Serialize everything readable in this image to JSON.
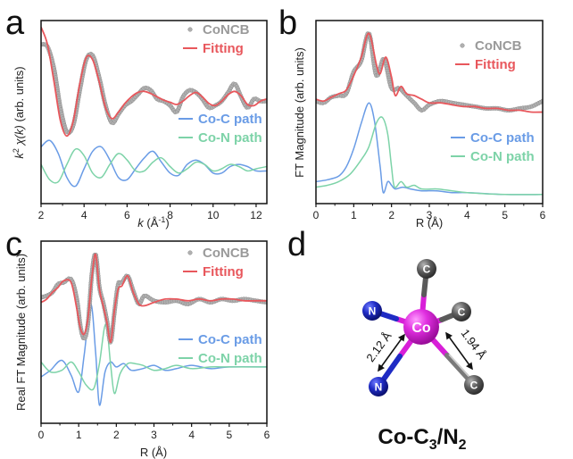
{
  "colors": {
    "data": "#9a9a9a",
    "fitting": "#e8575c",
    "co_c": "#6a9ce6",
    "co_n": "#7dd3a8",
    "cobalt": "#d81fd8",
    "nitrogen": "#1f2bc4",
    "carbon": "#5a5a5a"
  },
  "chart_data": [
    {
      "id": "a",
      "panel_label": "a",
      "type": "line",
      "xlabel_italic": "k",
      "xlabel_rest": " (Å",
      "xlabel_sup": "-1",
      "xlabel_end": ")",
      "ylabel_k": "k",
      "ylabel_sup": "2",
      "ylabel_chi": " χ(k)",
      "ylabel_rest": " (arb. units)",
      "xlim": [
        2,
        12.5
      ],
      "ylim": [
        -4.2,
        4.2
      ],
      "xticks": [
        "2",
        "4",
        "6",
        "8",
        "10",
        "12"
      ],
      "xtick_values": [
        2,
        4,
        6,
        8,
        10,
        12
      ],
      "grid": false,
      "legend": [
        {
          "name": "CoNCB",
          "style": "dots",
          "placement": "top-right"
        },
        {
          "name": "Fitting",
          "style": "line",
          "placement": "top-right"
        },
        {
          "name": "Co-C path",
          "style": "line",
          "placement": "middle-right"
        },
        {
          "name": "Co-N path",
          "style": "line",
          "placement": "middle-right"
        }
      ],
      "series": [
        {
          "name": "CoNCB",
          "kind": "dots",
          "x": [
            2.0,
            2.3,
            2.6,
            2.9,
            3.2,
            3.5,
            3.8,
            4.1,
            4.4,
            4.7,
            5.0,
            5.3,
            5.6,
            5.9,
            6.2,
            6.5,
            6.8,
            7.1,
            7.4,
            7.7,
            8.0,
            8.3,
            8.6,
            8.9,
            9.2,
            9.5,
            9.8,
            10.1,
            10.4,
            10.7,
            11.0,
            11.3,
            11.6,
            11.9,
            12.2,
            12.5
          ],
          "y": [
            3.1,
            3.0,
            2.0,
            0.2,
            -0.9,
            -0.6,
            1.0,
            2.4,
            2.6,
            1.6,
            0.3,
            -0.5,
            -0.1,
            0.3,
            0.5,
            0.8,
            1.1,
            1.0,
            0.6,
            0.5,
            0.3,
            0.0,
            0.7,
            1.0,
            0.9,
            0.6,
            0.2,
            0.3,
            0.5,
            0.9,
            1.3,
            0.7,
            0.2,
            0.6,
            0.5,
            0.5
          ]
        },
        {
          "name": "Fitting",
          "kind": "line",
          "x": [
            2.0,
            2.3,
            2.6,
            2.9,
            3.2,
            3.5,
            3.8,
            4.1,
            4.4,
            4.7,
            5.0,
            5.3,
            5.6,
            5.9,
            6.2,
            6.5,
            6.8,
            7.1,
            7.4,
            7.7,
            8.0,
            8.3,
            8.6,
            8.9,
            9.2,
            9.5,
            9.8,
            10.1,
            10.4,
            10.7,
            11.0,
            11.3,
            11.6,
            11.9,
            12.2,
            12.5
          ],
          "y": [
            3.9,
            3.1,
            1.4,
            -0.4,
            -1.1,
            -0.4,
            1.3,
            2.5,
            2.4,
            1.4,
            0.2,
            -0.3,
            0.0,
            0.4,
            0.7,
            0.9,
            0.95,
            0.85,
            0.7,
            0.55,
            0.45,
            0.35,
            0.5,
            0.75,
            0.9,
            0.7,
            0.4,
            0.3,
            0.5,
            0.8,
            0.95,
            0.75,
            0.35,
            0.3,
            0.5,
            0.6
          ]
        },
        {
          "name": "Co-C path",
          "kind": "line",
          "x": [
            2.0,
            2.4,
            2.8,
            3.2,
            3.6,
            4.0,
            4.4,
            4.8,
            5.2,
            5.6,
            6.0,
            6.4,
            6.8,
            7.2,
            7.6,
            8.0,
            8.4,
            8.8,
            9.2,
            9.6,
            10.0,
            10.4,
            10.8,
            11.2,
            11.6,
            12.0,
            12.5
          ],
          "y": [
            -1.6,
            -1.3,
            -1.9,
            -3.0,
            -3.4,
            -2.6,
            -1.8,
            -1.6,
            -2.2,
            -3.0,
            -3.1,
            -2.6,
            -2.1,
            -1.8,
            -2.3,
            -2.8,
            -2.9,
            -2.4,
            -2.2,
            -2.4,
            -2.8,
            -2.8,
            -2.5,
            -2.4,
            -2.5,
            -2.7,
            -2.7
          ]
        },
        {
          "name": "Co-N path",
          "kind": "line",
          "x": [
            2.0,
            2.4,
            2.8,
            3.2,
            3.6,
            4.0,
            4.4,
            4.8,
            5.2,
            5.6,
            6.0,
            6.4,
            6.8,
            7.2,
            7.6,
            8.0,
            8.4,
            8.8,
            9.2,
            9.6,
            10.0,
            10.4,
            10.8,
            11.2,
            11.6,
            12.0,
            12.5
          ],
          "y": [
            -2.4,
            -3.1,
            -3.2,
            -2.4,
            -1.7,
            -2.0,
            -2.8,
            -3.0,
            -2.4,
            -1.9,
            -2.2,
            -2.7,
            -2.7,
            -2.3,
            -2.1,
            -2.5,
            -2.8,
            -2.6,
            -2.3,
            -2.4,
            -2.7,
            -2.6,
            -2.4,
            -2.5,
            -2.7,
            -2.6,
            -2.5
          ]
        }
      ]
    },
    {
      "id": "b",
      "panel_label": "b",
      "type": "line",
      "xlabel": "R (Å)",
      "ylabel": "FT Magnitude (arb. units)",
      "xlim": [
        0,
        6
      ],
      "ylim": [
        0,
        10
      ],
      "xticks": [
        "0",
        "1",
        "2",
        "3",
        "4",
        "5",
        "6"
      ],
      "xtick_values": [
        0,
        1,
        2,
        3,
        4,
        5,
        6
      ],
      "grid": false,
      "legend": [
        {
          "name": "CoNCB",
          "style": "dots",
          "placement": "top-right"
        },
        {
          "name": "Fitting",
          "style": "line",
          "placement": "top-right"
        },
        {
          "name": "Co-C path",
          "style": "line",
          "placement": "middle-right"
        },
        {
          "name": "Co-N path",
          "style": "line",
          "placement": "middle-right"
        }
      ],
      "series": [
        {
          "name": "CoNCB",
          "kind": "dots",
          "x": [
            0.0,
            0.2,
            0.4,
            0.6,
            0.8,
            1.0,
            1.2,
            1.4,
            1.6,
            1.8,
            2.0,
            2.2,
            2.4,
            2.6,
            2.8,
            3.0,
            3.3,
            3.6,
            3.9,
            4.2,
            4.5,
            4.8,
            5.1,
            5.4,
            5.7,
            6.0
          ],
          "y": [
            5.6,
            5.5,
            5.8,
            5.9,
            6.0,
            7.2,
            7.8,
            9.3,
            7.0,
            7.9,
            6.3,
            6.3,
            5.9,
            5.5,
            5.1,
            5.4,
            5.6,
            5.5,
            5.4,
            5.3,
            5.2,
            5.2,
            5.1,
            5.2,
            5.3,
            5.6
          ]
        },
        {
          "name": "Fitting",
          "kind": "line",
          "x": [
            0.0,
            0.2,
            0.4,
            0.6,
            0.8,
            1.0,
            1.2,
            1.4,
            1.6,
            1.7,
            1.85,
            2.0,
            2.1,
            2.25,
            2.4,
            2.6,
            2.8,
            3.0,
            3.3,
            3.6,
            3.9,
            4.2,
            4.5,
            4.8,
            5.1,
            5.4,
            5.7,
            6.0
          ],
          "y": [
            5.7,
            5.6,
            5.8,
            6.0,
            6.2,
            7.0,
            8.0,
            9.3,
            7.6,
            7.1,
            8.0,
            6.9,
            5.9,
            6.4,
            6.0,
            5.9,
            5.7,
            5.5,
            5.5,
            5.4,
            5.3,
            5.3,
            5.2,
            5.2,
            5.1,
            5.1,
            5.0,
            5.0
          ]
        },
        {
          "name": "Co-C path",
          "kind": "line",
          "x": [
            0.0,
            0.3,
            0.6,
            0.8,
            1.0,
            1.2,
            1.4,
            1.55,
            1.7,
            1.78,
            1.9,
            2.0,
            2.1,
            2.3,
            2.5,
            2.8,
            3.2,
            3.6,
            4.0,
            5.0,
            6.0
          ],
          "y": [
            1.2,
            1.3,
            1.5,
            2.0,
            3.0,
            4.4,
            5.5,
            4.5,
            2.0,
            0.6,
            1.2,
            1.0,
            0.8,
            0.9,
            0.8,
            0.7,
            0.7,
            0.6,
            0.6,
            0.5,
            0.5
          ]
        },
        {
          "name": "Co-N path",
          "kind": "line",
          "x": [
            0.0,
            0.3,
            0.6,
            0.9,
            1.2,
            1.4,
            1.6,
            1.76,
            1.9,
            2.0,
            2.08,
            2.25,
            2.4,
            2.6,
            2.8,
            3.2,
            3.6,
            4.0,
            5.0,
            6.0
          ],
          "y": [
            0.9,
            1.0,
            1.2,
            1.6,
            2.4,
            3.1,
            4.4,
            4.7,
            3.8,
            2.0,
            0.9,
            1.2,
            0.9,
            1.0,
            0.8,
            0.8,
            0.7,
            0.6,
            0.5,
            0.5
          ]
        }
      ]
    },
    {
      "id": "c",
      "panel_label": "c",
      "type": "line",
      "xlabel": "R (Å)",
      "ylabel": "Real FT Magnitude (arb. units)",
      "xlim": [
        0,
        6
      ],
      "ylim": [
        -5.5,
        5.5
      ],
      "xticks": [
        "0",
        "1",
        "2",
        "3",
        "4",
        "5",
        "6"
      ],
      "xtick_values": [
        0,
        1,
        2,
        3,
        4,
        5,
        6
      ],
      "grid": false,
      "legend": [
        {
          "name": "CoNCB",
          "style": "dots",
          "placement": "top-right"
        },
        {
          "name": "Fitting",
          "style": "line",
          "placement": "top-right"
        },
        {
          "name": "Co-C path",
          "style": "line",
          "placement": "middle-right"
        },
        {
          "name": "Co-N path",
          "style": "line",
          "placement": "middle-right"
        }
      ],
      "series": [
        {
          "name": "CoNCB",
          "kind": "dots",
          "x": [
            0.0,
            0.15,
            0.3,
            0.45,
            0.6,
            0.8,
            0.95,
            1.05,
            1.15,
            1.25,
            1.35,
            1.45,
            1.55,
            1.65,
            1.75,
            1.85,
            1.95,
            2.05,
            2.15,
            2.3,
            2.45,
            2.6,
            2.75,
            3.0,
            3.3,
            3.6,
            3.9,
            4.2,
            4.5,
            4.8,
            5.1,
            5.4,
            5.7,
            6.0
          ],
          "y": [
            2.1,
            2.2,
            2.4,
            2.9,
            3.0,
            3.2,
            2.0,
            0.3,
            -0.4,
            0.6,
            3.5,
            4.7,
            2.7,
            1.8,
            0.7,
            -0.6,
            1.2,
            2.9,
            3.0,
            3.4,
            2.5,
            1.7,
            2.2,
            1.9,
            1.8,
            1.9,
            1.7,
            2.0,
            1.8,
            2.0,
            1.9,
            2.0,
            1.9,
            1.8
          ]
        },
        {
          "name": "Fitting",
          "kind": "line",
          "x": [
            0.0,
            0.15,
            0.3,
            0.45,
            0.6,
            0.8,
            0.95,
            1.05,
            1.15,
            1.25,
            1.35,
            1.45,
            1.55,
            1.65,
            1.75,
            1.85,
            1.95,
            2.05,
            2.15,
            2.3,
            2.45,
            2.6,
            2.75,
            3.0,
            3.3,
            3.6,
            3.9,
            4.2,
            4.5,
            4.8,
            5.1,
            5.4,
            5.7,
            6.0
          ],
          "y": [
            1.8,
            2.0,
            2.4,
            2.7,
            3.1,
            3.0,
            1.4,
            0.2,
            -0.1,
            0.9,
            3.3,
            4.7,
            2.6,
            1.6,
            0.6,
            -0.6,
            1.3,
            2.6,
            2.8,
            3.4,
            2.4,
            1.7,
            1.6,
            1.8,
            2.0,
            2.0,
            1.9,
            2.0,
            1.9,
            2.0,
            2.0,
            1.9,
            1.9,
            1.9
          ]
        },
        {
          "name": "Co-C path",
          "kind": "line",
          "x": [
            0.0,
            0.25,
            0.55,
            0.8,
            1.0,
            1.15,
            1.32,
            1.45,
            1.55,
            1.7,
            1.85,
            2.0,
            2.2,
            2.4,
            2.7,
            3.0,
            3.3,
            3.6,
            4.0,
            4.5,
            5.0,
            6.0
          ],
          "y": [
            -2.7,
            -2.3,
            -1.7,
            -2.6,
            -3.6,
            -1.3,
            1.7,
            -1.2,
            -4.4,
            -2.4,
            -1.8,
            -2.1,
            -1.9,
            -2.3,
            -2.2,
            -2.0,
            -2.3,
            -2.2,
            -2.0,
            -2.2,
            -2.1,
            -2.1
          ]
        },
        {
          "name": "Co-N path",
          "kind": "line",
          "x": [
            0.0,
            0.25,
            0.55,
            0.8,
            1.0,
            1.2,
            1.4,
            1.55,
            1.72,
            1.85,
            1.95,
            2.1,
            2.3,
            2.5,
            2.7,
            3.0,
            3.3,
            3.6,
            4.0,
            4.5,
            5.0,
            6.0
          ],
          "y": [
            -1.8,
            -2.4,
            -2.3,
            -1.8,
            -2.4,
            -3.2,
            -3.4,
            -1.9,
            0.5,
            -2.0,
            -3.7,
            -2.5,
            -1.9,
            -1.9,
            -2.0,
            -2.3,
            -2.2,
            -2.0,
            -2.2,
            -2.1,
            -2.1,
            -2.1
          ]
        }
      ]
    }
  ],
  "panel_d": {
    "panel_label": "d",
    "atoms": [
      {
        "element": "C",
        "label": "C",
        "role": "carbon-top"
      },
      {
        "element": "N",
        "label": "N",
        "role": "nitrogen-left"
      },
      {
        "element": "C",
        "label": "C",
        "role": "carbon-right"
      },
      {
        "element": "Co",
        "label": "Co",
        "role": "cobalt-center"
      },
      {
        "element": "N",
        "label": "N",
        "role": "nitrogen-bottom"
      },
      {
        "element": "C",
        "label": "C",
        "role": "carbon-bottom"
      }
    ],
    "bond_lengths": [
      {
        "label": "2.12 Å",
        "bond": "Co-N"
      },
      {
        "label": "1.94 Å",
        "bond": "Co-C"
      }
    ],
    "formula": {
      "base": "Co-C",
      "sub1": "3",
      "mid": "/N",
      "sub2": "2"
    }
  }
}
